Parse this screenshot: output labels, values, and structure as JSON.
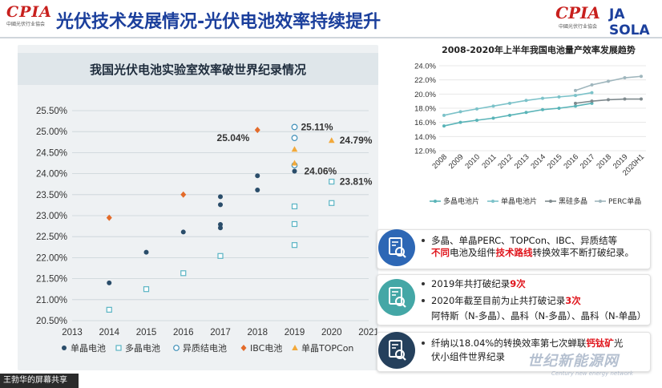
{
  "header": {
    "title": "光伏技术发展情况-光伏电池效率持续提升",
    "logo_left": {
      "mark": "CPIA",
      "sub": "中國光伏行业協会"
    },
    "logo_right1": {
      "mark": "CPIA",
      "sub": "中國光伏行业協会"
    },
    "logo_right2": {
      "mark": "JA SOLA",
      "sub": ""
    }
  },
  "colors": {
    "title_blue": "#1b3f9c",
    "mono": "#2a4d6a",
    "multi": "#5ab4c4",
    "hetero": "#3f8fb8",
    "ibc": "#e36b2a",
    "topcon": "#f2a93b",
    "accent_red": "#e0161d",
    "icon_blue": "#2d67b5",
    "icon_teal": "#44a7a6",
    "icon_navy": "#25405c"
  },
  "left_chart_title": "我国光伏电池实验室效率破世界纪录情况",
  "right_chart_title": "2008-2020年上半年我国电池量产效率发展趋势",
  "chart_data": [
    {
      "type": "scatter",
      "title": "我国光伏电池实验室效率破世界纪录情况",
      "xlim": [
        2013,
        2021
      ],
      "ylim": [
        20.5,
        25.5
      ],
      "x_ticks": [
        "2013",
        "2014",
        "2015",
        "2016",
        "2017",
        "2018",
        "2019",
        "2020",
        "2021"
      ],
      "y_ticks": [
        "20.50%",
        "21.00%",
        "21.50%",
        "22.00%",
        "22.50%",
        "23.00%",
        "23.50%",
        "24.00%",
        "24.50%",
        "25.00%",
        "25.50%"
      ],
      "legend_position": "bottom",
      "series": [
        {
          "name": "单晶电池",
          "marker": "dot",
          "points": [
            [
              2014,
              21.4
            ],
            [
              2015,
              22.13
            ],
            [
              2016,
              22.61
            ],
            [
              2017,
              22.71
            ],
            [
              2017,
              22.79
            ],
            [
              2017,
              23.26
            ],
            [
              2017,
              23.45
            ],
            [
              2018,
              23.61
            ],
            [
              2018,
              23.95
            ],
            [
              2019,
              24.06
            ]
          ]
        },
        {
          "name": "多晶电池",
          "marker": "square",
          "points": [
            [
              2014,
              20.76
            ],
            [
              2015,
              21.25
            ],
            [
              2016,
              21.63
            ],
            [
              2017,
              22.04
            ],
            [
              2019,
              22.3
            ],
            [
              2019,
              22.8
            ],
            [
              2019,
              23.22
            ],
            [
              2020,
              23.3
            ],
            [
              2020,
              23.81
            ]
          ]
        },
        {
          "name": "异质结电池",
          "marker": "circle",
          "points": [
            [
              2019,
              24.2
            ],
            [
              2019,
              24.85
            ],
            [
              2019,
              25.11
            ]
          ]
        },
        {
          "name": "IBC电池",
          "marker": "diamond",
          "points": [
            [
              2014,
              22.95
            ],
            [
              2016,
              23.5
            ],
            [
              2018,
              25.04
            ]
          ]
        },
        {
          "name": "单晶TOPCon",
          "marker": "triangle",
          "points": [
            [
              2019,
              24.25
            ],
            [
              2019,
              24.58
            ],
            [
              2020,
              24.79
            ]
          ]
        }
      ],
      "annotations": [
        {
          "text": "25.11%",
          "x": 2019,
          "y": 25.11
        },
        {
          "text": "25.04%",
          "x": 2018,
          "y": 25.04
        },
        {
          "text": "24.79%",
          "x": 2020,
          "y": 24.79
        },
        {
          "text": "24.06%",
          "x": 2019,
          "y": 24.06
        },
        {
          "text": "23.81%",
          "x": 2020,
          "y": 23.81
        }
      ]
    },
    {
      "type": "line",
      "title": "2008-2020年上半年我国电池量产效率发展趋势",
      "categories": [
        "2008",
        "2009",
        "2010",
        "2011",
        "2012",
        "2013",
        "2014",
        "2015",
        "2016",
        "2017",
        "2018",
        "2019",
        "2020H1"
      ],
      "ylim": [
        12,
        24
      ],
      "y_ticks": [
        "12.0%",
        "14.0%",
        "16.0%",
        "18.0%",
        "20.0%",
        "22.0%",
        "24.0%"
      ],
      "legend_position": "bottom",
      "series": [
        {
          "name": "多晶电池片",
          "values": [
            15.5,
            16.0,
            16.3,
            16.6,
            17.0,
            17.4,
            17.8,
            18.0,
            18.3,
            18.7,
            null,
            null,
            null
          ]
        },
        {
          "name": "单晶电池片",
          "values": [
            17.0,
            17.5,
            17.9,
            18.3,
            18.7,
            19.1,
            19.4,
            19.6,
            19.8,
            20.2,
            null,
            null,
            null
          ]
        },
        {
          "name": "黑硅多晶",
          "values": [
            null,
            null,
            null,
            null,
            null,
            null,
            null,
            null,
            18.7,
            19.0,
            19.2,
            19.3,
            19.3
          ]
        },
        {
          "name": "PERC单晶",
          "values": [
            null,
            null,
            null,
            null,
            null,
            null,
            null,
            null,
            20.5,
            21.3,
            21.8,
            22.3,
            22.5
          ]
        }
      ]
    }
  ],
  "bullets": [
    {
      "icon": "document-search-icon",
      "lines": [
        [
          {
            "t": "多晶、单晶PERC、TOPCon、IBC、异质结等",
            "s": ""
          }
        ],
        [
          {
            "t": "不同",
            "s": "red"
          },
          {
            "t": "电池及组件",
            "s": ""
          },
          {
            "t": "技术路线",
            "s": "red"
          },
          {
            "t": "转换效率不断打破纪录。",
            "s": ""
          }
        ]
      ]
    },
    {
      "icon": "document-search-icon",
      "lines": [
        [
          {
            "t": "2019年共打破纪录",
            "s": ""
          },
          {
            "t": "9次",
            "s": "red"
          }
        ],
        [
          {
            "t": "2020年截至目前为止共打破记录",
            "s": ""
          },
          {
            "t": "3次",
            "s": "red"
          }
        ],
        [
          {
            "t": "阿特斯（N-多晶）、晶科（N-多晶）、晶科（N-单晶）",
            "s": ""
          }
        ]
      ]
    },
    {
      "icon": "document-search-icon",
      "lines": [
        [
          {
            "t": "纤纳以18.04%的转换效率第七次蝉联",
            "s": ""
          },
          {
            "t": "钙钛矿",
            "s": "red"
          },
          {
            "t": "光",
            "s": ""
          }
        ],
        [
          {
            "t": "伏小组件世界纪录",
            "s": ""
          }
        ]
      ]
    }
  ],
  "footer": {
    "label": "王勃华的屏幕共享"
  },
  "watermark": {
    "big": "世纪新能源网",
    "small": "Century new energy network"
  }
}
